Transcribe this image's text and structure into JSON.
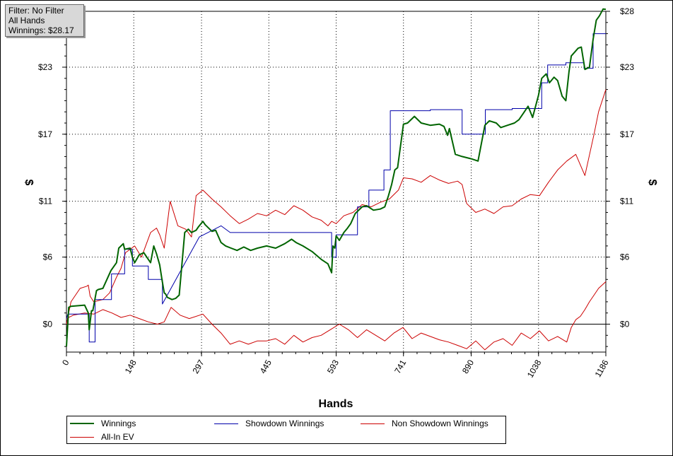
{
  "filter_box": {
    "line1": "Filter: No Filter",
    "line2": "All Hands",
    "line3": "Winnings: $28.17"
  },
  "chart_data": {
    "type": "line",
    "title": "",
    "xlabel": "Hands",
    "ylabel_left": "$",
    "ylabel_right": "$",
    "xlim": [
      0,
      1186
    ],
    "ylim": [
      -2.5,
      28
    ],
    "x_ticks": [
      "0",
      "148",
      "297",
      "445",
      "593",
      "741",
      "890",
      "1038",
      "1186"
    ],
    "x_tick_values": [
      0,
      148,
      297,
      445,
      593,
      741,
      890,
      1038,
      1186
    ],
    "y_ticks": [
      "$0",
      "$6",
      "$11",
      "$17",
      "$23",
      "$28"
    ],
    "y_tick_values": [
      0,
      6,
      11,
      17,
      23,
      28
    ],
    "grid": true,
    "zero_line": true,
    "legend_position": "bottom",
    "series": [
      {
        "name": "Winnings",
        "color": "#006400",
        "width": 2,
        "x": [
          0,
          5,
          10,
          40,
          48,
          50,
          55,
          58,
          66,
          70,
          80,
          98,
          110,
          115,
          125,
          128,
          140,
          145,
          150,
          160,
          170,
          185,
          192,
          198,
          205,
          210,
          215,
          218,
          222,
          232,
          240,
          248,
          260,
          268,
          275,
          285,
          290,
          300,
          305,
          320,
          328,
          340,
          350,
          362,
          375,
          390,
          405,
          420,
          440,
          460,
          480,
          495,
          505,
          520,
          540,
          560,
          575,
          583,
          586,
          590,
          593,
          600,
          610,
          618,
          625,
          635,
          650,
          660,
          675,
          690,
          700,
          708,
          715,
          722,
          728,
          741,
          750,
          765,
          780,
          800,
          820,
          830,
          838,
          842,
          855,
          870,
          890,
          905,
          920,
          930,
          945,
          955,
          970,
          985,
          995,
          1005,
          1015,
          1025,
          1038,
          1045,
          1055,
          1062,
          1072,
          1080,
          1090,
          1098,
          1105,
          1110,
          1125,
          1132,
          1140,
          1150,
          1158,
          1165,
          1172,
          1180,
          1186
        ],
        "y": [
          -2.0,
          1.5,
          1.6,
          1.7,
          1.0,
          -0.5,
          1.2,
          1.2,
          3.0,
          3.1,
          3.2,
          4.8,
          5.5,
          6.8,
          7.2,
          6.7,
          6.8,
          6.0,
          5.5,
          6.2,
          6.4,
          5.5,
          7.0,
          6.3,
          5.3,
          4.0,
          2.8,
          2.7,
          2.4,
          2.2,
          2.3,
          2.6,
          8.2,
          8.5,
          8.2,
          8.4,
          8.7,
          9.2,
          8.9,
          8.3,
          8.4,
          7.3,
          7.0,
          6.8,
          6.6,
          6.9,
          6.6,
          6.8,
          7.0,
          6.8,
          7.2,
          7.6,
          7.3,
          7.0,
          6.5,
          5.8,
          5.4,
          4.6,
          7.0,
          6.8,
          7.9,
          7.5,
          8.2,
          8.6,
          9.0,
          9.9,
          10.5,
          10.6,
          10.2,
          10.3,
          10.5,
          11.5,
          12.5,
          13.8,
          14.0,
          17.9,
          18.0,
          18.6,
          18.0,
          17.8,
          17.9,
          17.7,
          16.9,
          17.5,
          15.2,
          15.0,
          14.8,
          14.6,
          17.8,
          18.2,
          18.0,
          17.6,
          17.8,
          18.0,
          18.3,
          18.9,
          19.5,
          18.5,
          20.5,
          22.0,
          22.4,
          21.6,
          22.1,
          21.8,
          20.4,
          20.0,
          22.6,
          24.0,
          24.7,
          24.8,
          22.8,
          23.0,
          25.5,
          27.2,
          27.6,
          28.2,
          28.17
        ]
      },
      {
        "name": "Showdown Winnings",
        "color": "#0000aa",
        "width": 1,
        "x": [
          0,
          3,
          50,
          50,
          63,
          63,
          99,
          99,
          128,
          128,
          145,
          145,
          180,
          180,
          211,
          211,
          292,
          292,
          340,
          340,
          360,
          360,
          583,
          583,
          593,
          593,
          640,
          640,
          665,
          665,
          698,
          698,
          712,
          712,
          741,
          741,
          800,
          800,
          870,
          870,
          921,
          921,
          980,
          980,
          1045,
          1045,
          1058,
          1058,
          1098,
          1098,
          1138,
          1138,
          1158,
          1158,
          1186
        ],
        "y": [
          0.5,
          0.9,
          0.9,
          -1.6,
          -1.6,
          2.2,
          2.2,
          4.5,
          4.5,
          6.7,
          6.7,
          5.2,
          5.2,
          4.0,
          4.0,
          1.8,
          7.8,
          7.8,
          8.8,
          8.8,
          8.2,
          8.2,
          8.2,
          6.0,
          6.0,
          8.0,
          8.0,
          10.5,
          10.5,
          12.0,
          12.0,
          13.8,
          13.8,
          19.1,
          19.1,
          19.1,
          19.1,
          19.2,
          19.2,
          17.0,
          17.0,
          19.2,
          19.2,
          19.3,
          19.3,
          21.6,
          21.6,
          23.2,
          23.2,
          23.4,
          23.4,
          22.9,
          22.9,
          26.0,
          26.0
        ]
      },
      {
        "name": "Non Showdown Winnings",
        "color": "#cc0000",
        "width": 1,
        "x": [
          0,
          15,
          40,
          60,
          80,
          100,
          120,
          140,
          160,
          180,
          200,
          215,
          230,
          250,
          270,
          300,
          320,
          340,
          360,
          380,
          400,
          420,
          440,
          460,
          480,
          500,
          520,
          540,
          560,
          580,
          600,
          620,
          640,
          660,
          680,
          700,
          720,
          740,
          760,
          780,
          800,
          820,
          840,
          860,
          880,
          900,
          920,
          940,
          960,
          980,
          1000,
          1020,
          1040,
          1060,
          1080,
          1100,
          1110,
          1120,
          1130,
          1140,
          1150,
          1160,
          1170,
          1186
        ],
        "y": [
          0.5,
          0.8,
          1.0,
          0.9,
          1.3,
          1.0,
          0.6,
          0.8,
          0.5,
          0.2,
          0.0,
          0.2,
          1.5,
          0.8,
          0.5,
          0.9,
          0.0,
          -0.8,
          -1.8,
          -1.5,
          -1.8,
          -1.5,
          -1.5,
          -1.3,
          -1.8,
          -1.0,
          -1.6,
          -1.2,
          -1.0,
          -0.5,
          0.0,
          -0.5,
          -1.2,
          -0.5,
          -1.0,
          -1.5,
          -0.8,
          -0.3,
          -1.3,
          -0.8,
          -1.1,
          -1.4,
          -1.6,
          -1.9,
          -2.2,
          -1.5,
          -2.3,
          -1.6,
          -1.3,
          -1.9,
          -0.8,
          -1.3,
          -0.6,
          -1.5,
          -1.1,
          -1.6,
          -0.3,
          0.4,
          0.7,
          1.3,
          2.0,
          2.6,
          3.2,
          3.8
        ]
      },
      {
        "name": "All-In EV",
        "color": "#cc0000",
        "width": 1,
        "x": [
          0,
          10,
          30,
          45,
          48,
          52,
          60,
          80,
          95,
          110,
          120,
          130,
          150,
          165,
          185,
          198,
          205,
          215,
          228,
          245,
          262,
          275,
          285,
          300,
          320,
          340,
          360,
          380,
          400,
          420,
          440,
          460,
          480,
          500,
          520,
          540,
          560,
          575,
          583,
          593,
          610,
          630,
          650,
          670,
          690,
          710,
          730,
          741,
          760,
          780,
          800,
          820,
          840,
          860,
          870,
          880,
          900,
          920,
          940,
          960,
          980,
          1000,
          1020,
          1040,
          1060,
          1080,
          1100,
          1120,
          1140,
          1160,
          1170,
          1186
        ],
        "y": [
          0.0,
          2.0,
          3.2,
          3.4,
          3.5,
          2.5,
          2.0,
          2.2,
          2.8,
          4.2,
          5.0,
          6.4,
          7.0,
          6.0,
          8.2,
          8.6,
          8.0,
          6.8,
          11.0,
          8.8,
          8.5,
          7.8,
          11.5,
          12.0,
          11.2,
          10.5,
          9.7,
          9.0,
          9.4,
          9.9,
          9.7,
          10.2,
          9.8,
          10.6,
          10.2,
          9.6,
          9.3,
          8.8,
          9.2,
          9.0,
          9.7,
          10.0,
          10.7,
          10.5,
          10.9,
          11.2,
          12.0,
          13.1,
          13.0,
          12.7,
          13.3,
          12.9,
          12.6,
          12.8,
          12.5,
          10.8,
          10.0,
          10.3,
          9.9,
          10.5,
          10.6,
          11.2,
          11.6,
          11.5,
          12.7,
          13.8,
          14.6,
          15.2,
          13.3,
          17.0,
          19.0,
          21.0
        ]
      }
    ]
  },
  "legend": {
    "items": [
      {
        "label": "Winnings",
        "color": "#006400",
        "width": 2
      },
      {
        "label": "Showdown Winnings",
        "color": "#0000aa",
        "width": 1
      },
      {
        "label": "Non Showdown Winnings",
        "color": "#cc0000",
        "width": 1
      },
      {
        "label": "All-In EV",
        "color": "#cc0000",
        "width": 1
      }
    ]
  }
}
